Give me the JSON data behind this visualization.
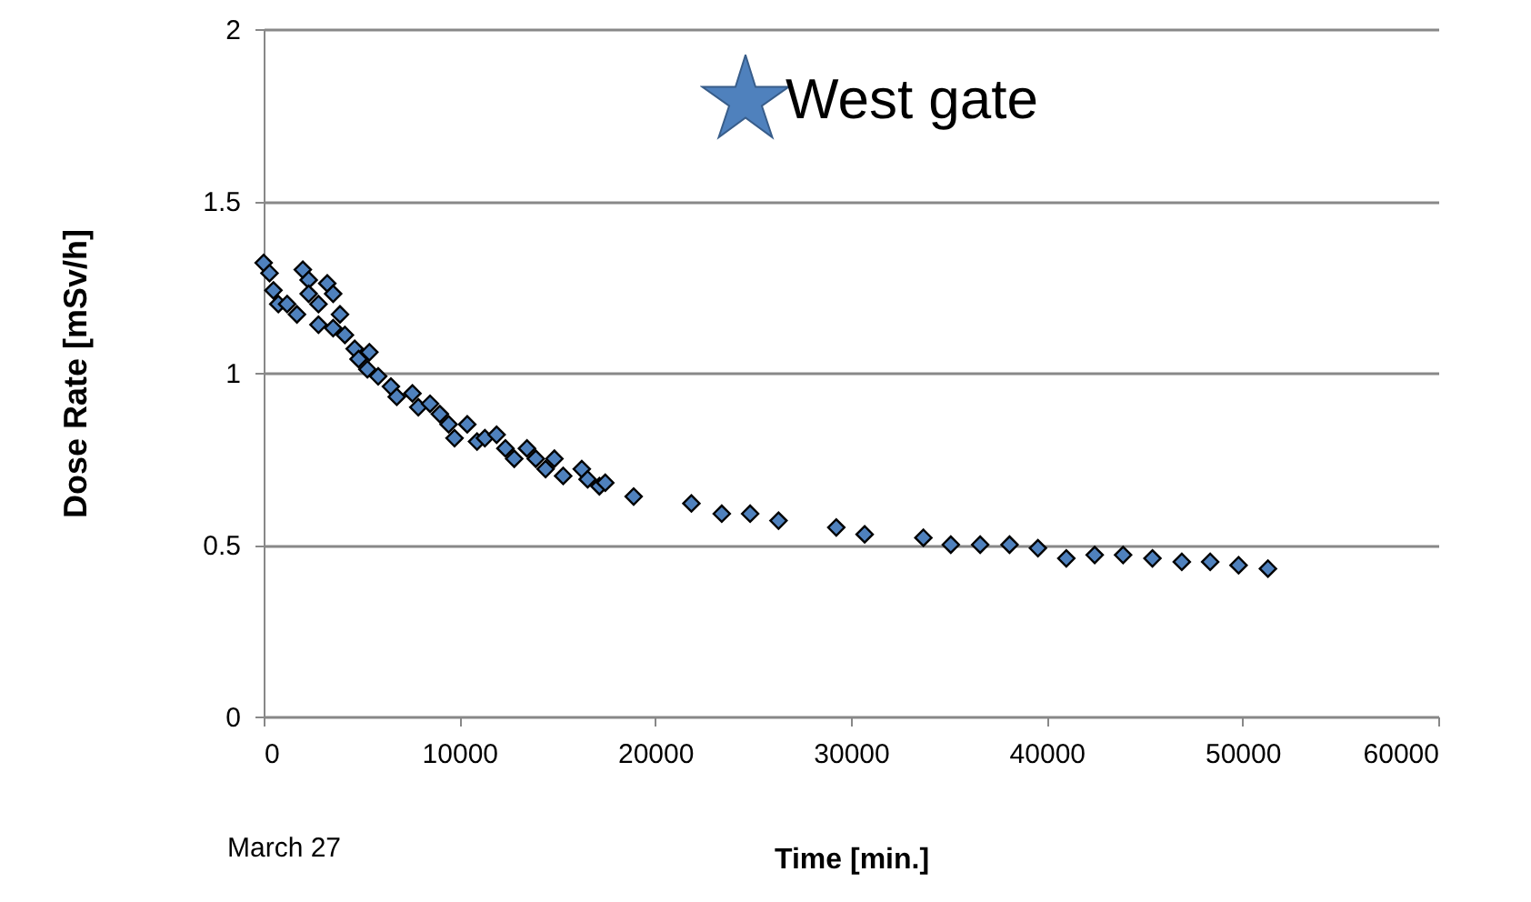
{
  "chart_data": {
    "type": "scatter",
    "xlabel": "Time   [min.]",
    "ylabel": "Dose Rate  [mSv/h]",
    "annotations": [
      "West gate",
      "March 27"
    ],
    "xlim": [
      0,
      60000
    ],
    "xticks": [
      0,
      10000,
      20000,
      30000,
      40000,
      50000,
      60000
    ],
    "ylim": [
      0,
      2
    ],
    "yticks": [
      0,
      0.5,
      1,
      1.5,
      2
    ],
    "grid": "y",
    "marker": "diamond",
    "series": [
      {
        "color": "#4f81bd",
        "x": [
          0,
          300,
          500,
          750,
          1200,
          1700,
          2000,
          2300,
          2300,
          2800,
          2800,
          3250,
          3550,
          3900,
          3550,
          4150,
          4650,
          5400,
          4850,
          5300,
          5850,
          6500,
          6800,
          7600,
          7900,
          8500,
          9000,
          9450,
          9750,
          10400,
          10900,
          11300,
          11900,
          12350,
          12800,
          13450,
          13900,
          14400,
          14850,
          15300,
          16250,
          16550,
          17150,
          17450,
          18900,
          21850,
          23400,
          24850,
          26300,
          29250,
          30700,
          33700,
          35100,
          36600,
          38100,
          39550,
          41000,
          42450,
          43900,
          45400,
          46900,
          48350,
          49800,
          51300
        ],
        "values": [
          1.32,
          1.29,
          1.24,
          1.2,
          1.2,
          1.17,
          1.3,
          1.27,
          1.23,
          1.2,
          1.14,
          1.26,
          1.23,
          1.17,
          1.13,
          1.11,
          1.07,
          1.06,
          1.04,
          1.01,
          0.99,
          0.96,
          0.93,
          0.94,
          0.9,
          0.91,
          0.88,
          0.85,
          0.81,
          0.85,
          0.8,
          0.81,
          0.82,
          0.78,
          0.75,
          0.78,
          0.75,
          0.72,
          0.75,
          0.7,
          0.72,
          0.69,
          0.67,
          0.68,
          0.64,
          0.62,
          0.59,
          0.59,
          0.57,
          0.55,
          0.53,
          0.52,
          0.5,
          0.5,
          0.5,
          0.49,
          0.46,
          0.47,
          0.47,
          0.46,
          0.45,
          0.45,
          0.44,
          0.43
        ]
      }
    ]
  }
}
